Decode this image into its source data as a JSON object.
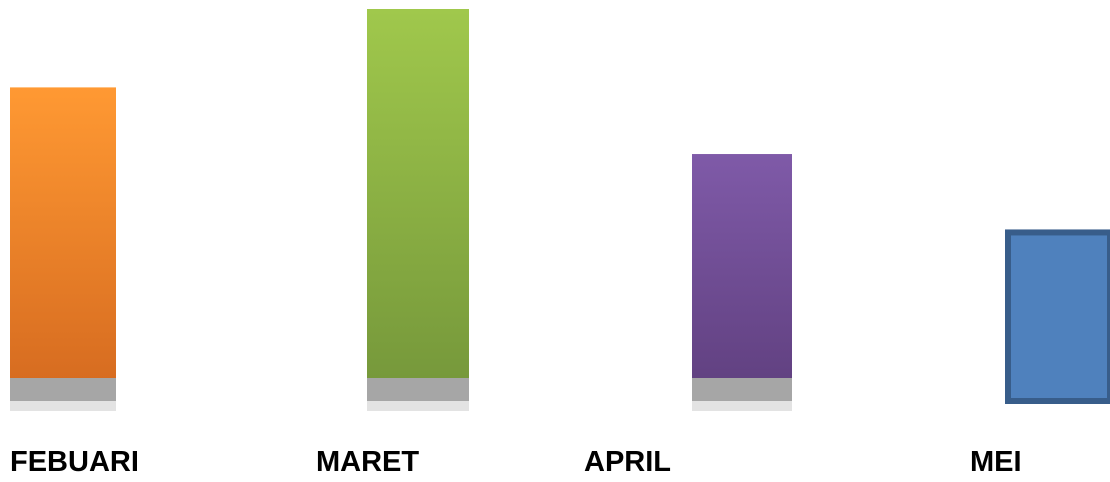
{
  "chart_data": {
    "type": "bar",
    "categories": [
      "FEBUARI",
      "MARET",
      "APRIL",
      "MEI"
    ],
    "values": [
      80,
      100,
      63,
      43
    ],
    "ylim": [
      0,
      100
    ],
    "title": "",
    "xlabel": "",
    "ylabel": "",
    "grid": false,
    "legend": "none",
    "colors": [
      {
        "top": "#ff9933",
        "bottom": "#d4691f"
      },
      {
        "top": "#a0c84c",
        "bottom": "#74963a"
      },
      {
        "top": "#7f5aa8",
        "bottom": "#5f3f7e"
      },
      {
        "top": "#4f81bd",
        "bottom": "#4f81bd",
        "border": "#385d8a"
      }
    ],
    "shadow_color": "#a6a6a6"
  }
}
